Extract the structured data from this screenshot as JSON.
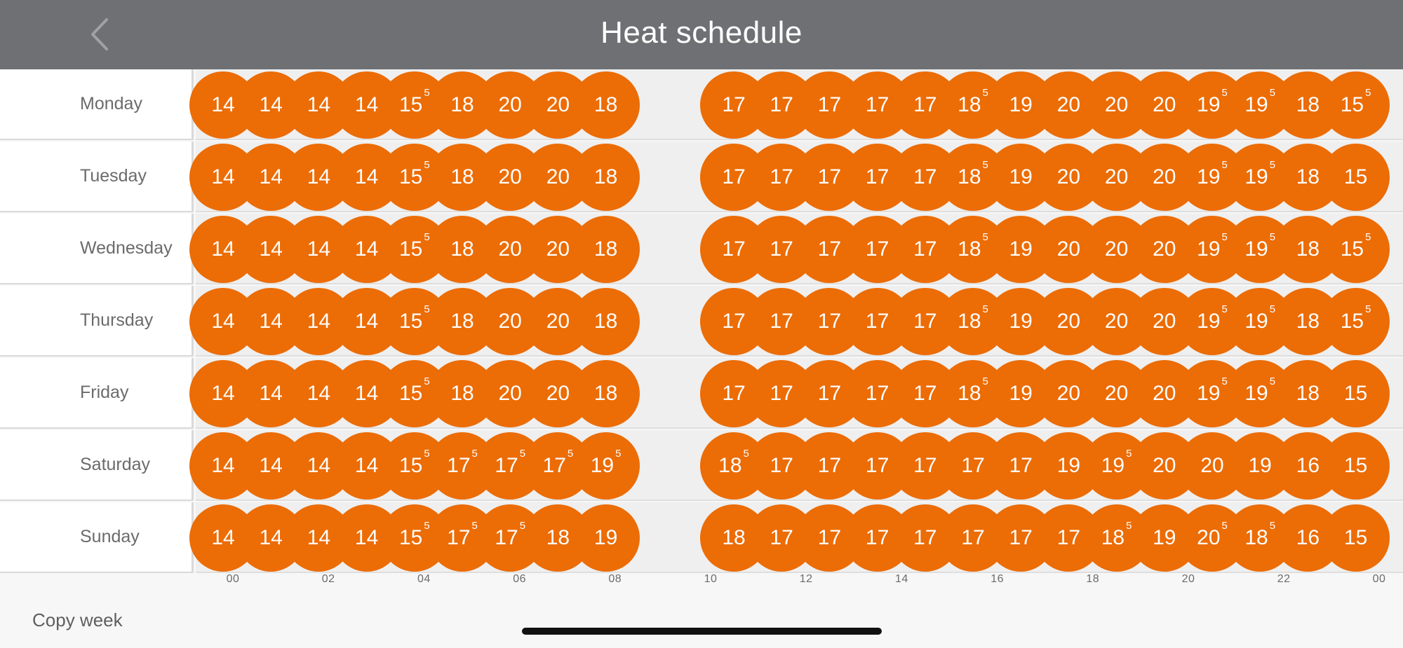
{
  "header": {
    "title": "Heat schedule",
    "back_icon": "chevron-left-icon"
  },
  "colors": {
    "header_bg": "#6f7073",
    "bubble": "#ec6c05",
    "track_bg": "#efefef"
  },
  "schedule": [
    {
      "day": "Monday",
      "slots": [
        [
          "14",
          ""
        ],
        [
          "14",
          ""
        ],
        [
          "14",
          ""
        ],
        [
          "14",
          ""
        ],
        [
          "15",
          "5"
        ],
        [
          "18",
          ""
        ],
        [
          "20",
          ""
        ],
        [
          "20",
          ""
        ],
        [
          "18",
          ""
        ],
        [
          "17",
          ""
        ],
        [
          "17",
          ""
        ],
        [
          "17",
          ""
        ],
        [
          "17",
          ""
        ],
        [
          "17",
          ""
        ],
        [
          "18",
          "5"
        ],
        [
          "19",
          ""
        ],
        [
          "20",
          ""
        ],
        [
          "20",
          ""
        ],
        [
          "20",
          ""
        ],
        [
          "19",
          "5"
        ],
        [
          "19",
          "5"
        ],
        [
          "18",
          ""
        ],
        [
          "15",
          "5"
        ]
      ]
    },
    {
      "day": "Tuesday",
      "slots": [
        [
          "14",
          ""
        ],
        [
          "14",
          ""
        ],
        [
          "14",
          ""
        ],
        [
          "14",
          ""
        ],
        [
          "15",
          "5"
        ],
        [
          "18",
          ""
        ],
        [
          "20",
          ""
        ],
        [
          "20",
          ""
        ],
        [
          "18",
          ""
        ],
        [
          "17",
          ""
        ],
        [
          "17",
          ""
        ],
        [
          "17",
          ""
        ],
        [
          "17",
          ""
        ],
        [
          "17",
          ""
        ],
        [
          "18",
          "5"
        ],
        [
          "19",
          ""
        ],
        [
          "20",
          ""
        ],
        [
          "20",
          ""
        ],
        [
          "20",
          ""
        ],
        [
          "19",
          "5"
        ],
        [
          "19",
          "5"
        ],
        [
          "18",
          ""
        ],
        [
          "15",
          ""
        ]
      ]
    },
    {
      "day": "Wednesday",
      "slots": [
        [
          "14",
          ""
        ],
        [
          "14",
          ""
        ],
        [
          "14",
          ""
        ],
        [
          "14",
          ""
        ],
        [
          "15",
          "5"
        ],
        [
          "18",
          ""
        ],
        [
          "20",
          ""
        ],
        [
          "20",
          ""
        ],
        [
          "18",
          ""
        ],
        [
          "17",
          ""
        ],
        [
          "17",
          ""
        ],
        [
          "17",
          ""
        ],
        [
          "17",
          ""
        ],
        [
          "17",
          ""
        ],
        [
          "18",
          "5"
        ],
        [
          "19",
          ""
        ],
        [
          "20",
          ""
        ],
        [
          "20",
          ""
        ],
        [
          "20",
          ""
        ],
        [
          "19",
          "5"
        ],
        [
          "19",
          "5"
        ],
        [
          "18",
          ""
        ],
        [
          "15",
          "5"
        ]
      ]
    },
    {
      "day": "Thursday",
      "slots": [
        [
          "14",
          ""
        ],
        [
          "14",
          ""
        ],
        [
          "14",
          ""
        ],
        [
          "14",
          ""
        ],
        [
          "15",
          "5"
        ],
        [
          "18",
          ""
        ],
        [
          "20",
          ""
        ],
        [
          "20",
          ""
        ],
        [
          "18",
          ""
        ],
        [
          "17",
          ""
        ],
        [
          "17",
          ""
        ],
        [
          "17",
          ""
        ],
        [
          "17",
          ""
        ],
        [
          "17",
          ""
        ],
        [
          "18",
          "5"
        ],
        [
          "19",
          ""
        ],
        [
          "20",
          ""
        ],
        [
          "20",
          ""
        ],
        [
          "20",
          ""
        ],
        [
          "19",
          "5"
        ],
        [
          "19",
          "5"
        ],
        [
          "18",
          ""
        ],
        [
          "15",
          "5"
        ]
      ]
    },
    {
      "day": "Friday",
      "slots": [
        [
          "14",
          ""
        ],
        [
          "14",
          ""
        ],
        [
          "14",
          ""
        ],
        [
          "14",
          ""
        ],
        [
          "15",
          "5"
        ],
        [
          "18",
          ""
        ],
        [
          "20",
          ""
        ],
        [
          "20",
          ""
        ],
        [
          "18",
          ""
        ],
        [
          "17",
          ""
        ],
        [
          "17",
          ""
        ],
        [
          "17",
          ""
        ],
        [
          "17",
          ""
        ],
        [
          "17",
          ""
        ],
        [
          "18",
          "5"
        ],
        [
          "19",
          ""
        ],
        [
          "20",
          ""
        ],
        [
          "20",
          ""
        ],
        [
          "20",
          ""
        ],
        [
          "19",
          "5"
        ],
        [
          "19",
          "5"
        ],
        [
          "18",
          ""
        ],
        [
          "15",
          ""
        ]
      ]
    },
    {
      "day": "Saturday",
      "slots": [
        [
          "14",
          ""
        ],
        [
          "14",
          ""
        ],
        [
          "14",
          ""
        ],
        [
          "14",
          ""
        ],
        [
          "15",
          "5"
        ],
        [
          "17",
          "5"
        ],
        [
          "17",
          "5"
        ],
        [
          "17",
          "5"
        ],
        [
          "19",
          "5"
        ],
        [
          "18",
          "5"
        ],
        [
          "17",
          ""
        ],
        [
          "17",
          ""
        ],
        [
          "17",
          ""
        ],
        [
          "17",
          ""
        ],
        [
          "17",
          ""
        ],
        [
          "17",
          ""
        ],
        [
          "19",
          ""
        ],
        [
          "19",
          "5"
        ],
        [
          "20",
          ""
        ],
        [
          "20",
          ""
        ],
        [
          "19",
          ""
        ],
        [
          "16",
          ""
        ],
        [
          "15",
          ""
        ]
      ]
    },
    {
      "day": "Sunday",
      "slots": [
        [
          "14",
          ""
        ],
        [
          "14",
          ""
        ],
        [
          "14",
          ""
        ],
        [
          "14",
          ""
        ],
        [
          "15",
          "5"
        ],
        [
          "17",
          "5"
        ],
        [
          "17",
          "5"
        ],
        [
          "18",
          ""
        ],
        [
          "19",
          ""
        ],
        [
          "18",
          ""
        ],
        [
          "17",
          ""
        ],
        [
          "17",
          ""
        ],
        [
          "17",
          ""
        ],
        [
          "17",
          ""
        ],
        [
          "17",
          ""
        ],
        [
          "17",
          ""
        ],
        [
          "17",
          ""
        ],
        [
          "18",
          "5"
        ],
        [
          "19",
          ""
        ],
        [
          "20",
          "5"
        ],
        [
          "18",
          "5"
        ],
        [
          "16",
          ""
        ],
        [
          "15",
          ""
        ]
      ]
    }
  ],
  "axis_labels": [
    "00",
    "02",
    "04",
    "06",
    "08",
    "10",
    "12",
    "14",
    "16",
    "18",
    "20",
    "22",
    "00"
  ],
  "footer": {
    "copy_week": "Copy week"
  }
}
